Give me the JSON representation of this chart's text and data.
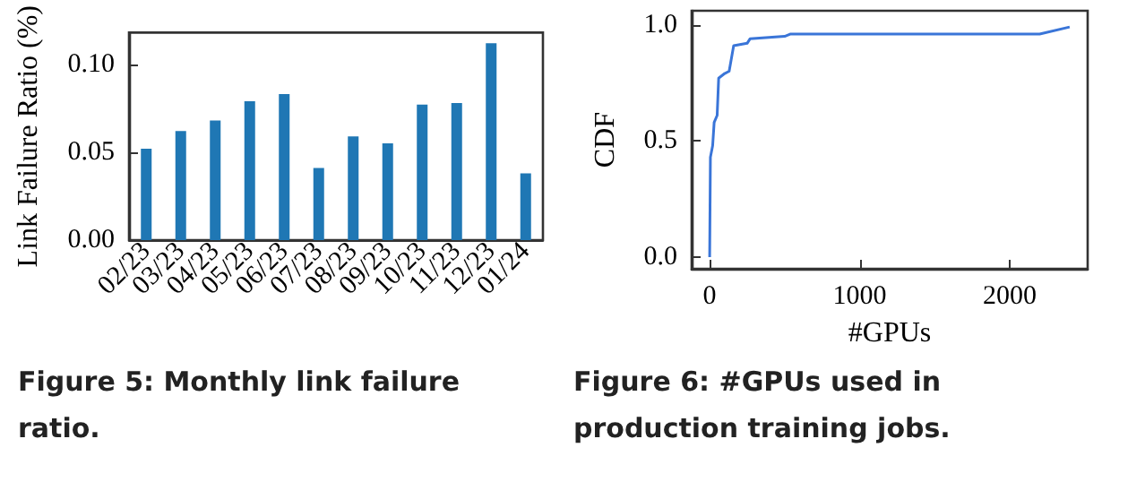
{
  "chart_data": [
    {
      "type": "bar",
      "ylabel": "Link Failure Ratio (%)",
      "categories": [
        "02/23",
        "03/23",
        "04/23",
        "05/23",
        "06/23",
        "07/23",
        "08/23",
        "09/23",
        "10/23",
        "11/23",
        "12/23",
        "01/24"
      ],
      "series": [
        {
          "color": "#1f77b4",
          "values": [
            0.052,
            0.062,
            0.068,
            0.079,
            0.083,
            0.041,
            0.059,
            0.055,
            0.077,
            0.078,
            0.112,
            0.038
          ]
        }
      ],
      "ylim": [
        0,
        0.118
      ],
      "yticks": [
        {
          "value": 0,
          "label": "0.00"
        },
        {
          "value": 0.05,
          "label": "0.05"
        },
        {
          "value": 0.1,
          "label": "0.10"
        }
      ],
      "grid": false,
      "annotations": [
        "Figure 5: Monthly link failure ratio."
      ]
    },
    {
      "type": "line",
      "xlabel": "#GPUs",
      "ylabel": "CDF",
      "series": [
        {
          "color": "#3a75d8",
          "x": [
            0,
            5,
            20,
            30,
            50,
            60,
            100,
            130,
            160,
            250,
            270,
            500,
            540,
            2200,
            2400
          ],
          "values": [
            0,
            0.43,
            0.48,
            0.58,
            0.61,
            0.77,
            0.79,
            0.8,
            0.91,
            0.92,
            0.94,
            0.95,
            0.96,
            0.96,
            0.99
          ]
        }
      ],
      "xlim": [
        -120,
        2520
      ],
      "xticks": [
        0,
        1000,
        2000
      ],
      "ylim": [
        -0.05,
        1.06
      ],
      "yticks": [
        {
          "value": 0,
          "label": "0.0"
        },
        {
          "value": 0.5,
          "label": "0.5"
        },
        {
          "value": 1,
          "label": "1.0"
        }
      ],
      "grid": false,
      "marker": "none",
      "annotations": [
        "Figure 6: #GPUs used in production training jobs."
      ]
    }
  ]
}
